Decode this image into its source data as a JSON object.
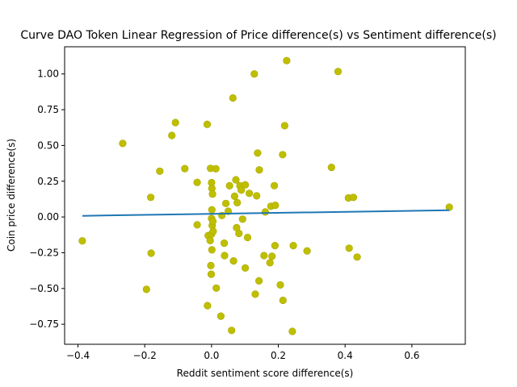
{
  "chart_data": {
    "type": "scatter",
    "title": "Curve DAO Token Linear Regression of Price difference(s) vs Sentiment difference(s)",
    "xlabel": "Reddit sentiment score difference(s)",
    "ylabel": "Coin price difference(s)",
    "xlim": [
      -0.44,
      0.76
    ],
    "ylim": [
      -0.89,
      1.19
    ],
    "x_ticks": [
      "−0.4",
      "−0.2",
      "0.0",
      "0.2",
      "0.4",
      "0.6"
    ],
    "x_tick_values": [
      -0.4,
      -0.2,
      0.0,
      0.2,
      0.4,
      0.6
    ],
    "y_ticks": [
      "−0.75",
      "−0.50",
      "−0.25",
      "0.00",
      "0.25",
      "0.50",
      "0.75",
      "1.00"
    ],
    "y_tick_values": [
      -0.75,
      -0.5,
      -0.25,
      0.0,
      0.25,
      0.5,
      0.75,
      1.0
    ],
    "grid": false,
    "point_color": "#bfbf00",
    "line_color": "#1f77b4",
    "points": [
      [
        -0.387,
        -0.167
      ],
      [
        -0.266,
        0.514
      ],
      [
        -0.195,
        -0.506
      ],
      [
        -0.182,
        0.137
      ],
      [
        -0.181,
        -0.253
      ],
      [
        -0.155,
        0.32
      ],
      [
        -0.119,
        0.57
      ],
      [
        -0.108,
        0.66
      ],
      [
        -0.08,
        0.338
      ],
      [
        -0.043,
        0.242
      ],
      [
        -0.043,
        -0.055
      ],
      [
        -0.013,
        0.648
      ],
      [
        -0.012,
        -0.62
      ],
      [
        -0.01,
        -0.13
      ],
      [
        -0.004,
        -0.165
      ],
      [
        -0.003,
        0.34
      ],
      [
        -0.002,
        -0.34
      ],
      [
        -0.001,
        -0.4
      ],
      [
        0.0,
        0.24
      ],
      [
        0.0,
        -0.01
      ],
      [
        0.0,
        -0.12
      ],
      [
        0.001,
        0.05
      ],
      [
        0.001,
        -0.23
      ],
      [
        0.001,
        0.2
      ],
      [
        0.002,
        -0.06
      ],
      [
        0.003,
        0.16
      ],
      [
        0.004,
        -0.03
      ],
      [
        0.005,
        -0.1
      ],
      [
        0.013,
        0.337
      ],
      [
        0.014,
        -0.497
      ],
      [
        0.028,
        -0.693
      ],
      [
        0.031,
        0.01
      ],
      [
        0.038,
        -0.183
      ],
      [
        0.039,
        -0.27
      ],
      [
        0.043,
        0.095
      ],
      [
        0.05,
        0.04
      ],
      [
        0.054,
        0.218
      ],
      [
        0.06,
        -0.793
      ],
      [
        0.064,
        0.832
      ],
      [
        0.066,
        -0.307
      ],
      [
        0.069,
        0.145
      ],
      [
        0.073,
        0.26
      ],
      [
        0.075,
        -0.075
      ],
      [
        0.077,
        0.1
      ],
      [
        0.082,
        -0.115
      ],
      [
        0.085,
        0.218
      ],
      [
        0.089,
        0.188
      ],
      [
        0.093,
        -0.015
      ],
      [
        0.101,
        0.225
      ],
      [
        0.101,
        -0.357
      ],
      [
        0.108,
        -0.143
      ],
      [
        0.113,
        0.165
      ],
      [
        0.128,
        1.0
      ],
      [
        0.131,
        -0.54
      ],
      [
        0.135,
        0.148
      ],
      [
        0.138,
        0.447
      ],
      [
        0.142,
        -0.447
      ],
      [
        0.143,
        0.329
      ],
      [
        0.157,
        -0.27
      ],
      [
        0.161,
        0.035
      ],
      [
        0.175,
        -0.32
      ],
      [
        0.178,
        0.075
      ],
      [
        0.181,
        -0.275
      ],
      [
        0.188,
        0.219
      ],
      [
        0.19,
        -0.2
      ],
      [
        0.191,
        0.082
      ],
      [
        0.206,
        -0.475
      ],
      [
        0.213,
        0.436
      ],
      [
        0.214,
        -0.583
      ],
      [
        0.219,
        0.638
      ],
      [
        0.225,
        1.093
      ],
      [
        0.242,
        -0.8
      ],
      [
        0.245,
        -0.2
      ],
      [
        0.286,
        -0.237
      ],
      [
        0.359,
        0.347
      ],
      [
        0.379,
        1.017
      ],
      [
        0.41,
        0.133
      ],
      [
        0.412,
        -0.218
      ],
      [
        0.425,
        0.137
      ],
      [
        0.436,
        -0.28
      ],
      [
        0.712,
        0.068
      ]
    ],
    "regression_line": {
      "x": [
        -0.387,
        0.712
      ],
      "y": [
        0.008,
        0.047
      ]
    }
  }
}
